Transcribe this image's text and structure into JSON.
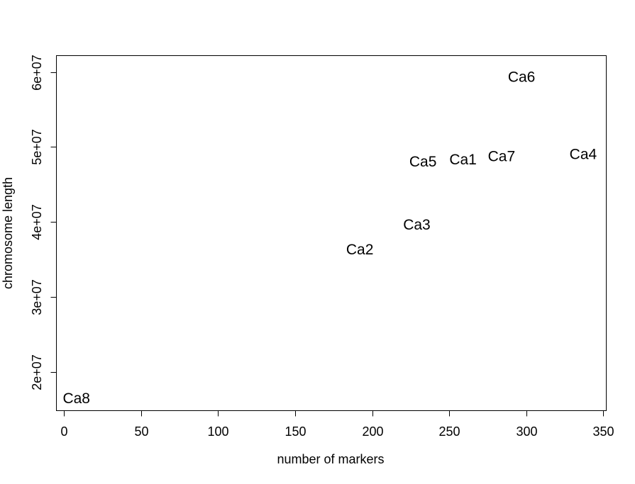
{
  "chart_data": {
    "type": "scatter",
    "title": "",
    "xlabel": "number of markers",
    "ylabel": "chromosome length",
    "xlim": [
      -5,
      352
    ],
    "ylim": [
      14800000,
      62200000
    ],
    "x_ticks": [
      {
        "value": 0,
        "label": "0"
      },
      {
        "value": 50,
        "label": "50"
      },
      {
        "value": 100,
        "label": "100"
      },
      {
        "value": 150,
        "label": "150"
      },
      {
        "value": 200,
        "label": "200"
      },
      {
        "value": 250,
        "label": "250"
      },
      {
        "value": 300,
        "label": "300"
      },
      {
        "value": 350,
        "label": "350"
      }
    ],
    "y_ticks": [
      {
        "value": 20000000,
        "label": "2e+07"
      },
      {
        "value": 30000000,
        "label": "3e+07"
      },
      {
        "value": 40000000,
        "label": "4e+07"
      },
      {
        "value": 50000000,
        "label": "5e+07"
      },
      {
        "value": 60000000,
        "label": "6e+07"
      }
    ],
    "grid": false,
    "points": [
      {
        "label": "Ca1",
        "x": 259,
        "y": 48300000
      },
      {
        "label": "Ca2",
        "x": 192,
        "y": 36300000
      },
      {
        "label": "Ca3",
        "x": 229,
        "y": 39600000
      },
      {
        "label": "Ca4",
        "x": 337,
        "y": 49000000
      },
      {
        "label": "Ca5",
        "x": 233,
        "y": 48000000
      },
      {
        "label": "Ca6",
        "x": 297,
        "y": 59300000
      },
      {
        "label": "Ca7",
        "x": 284,
        "y": 48700000
      },
      {
        "label": "Ca8",
        "x": 8,
        "y": 16400000
      }
    ]
  }
}
